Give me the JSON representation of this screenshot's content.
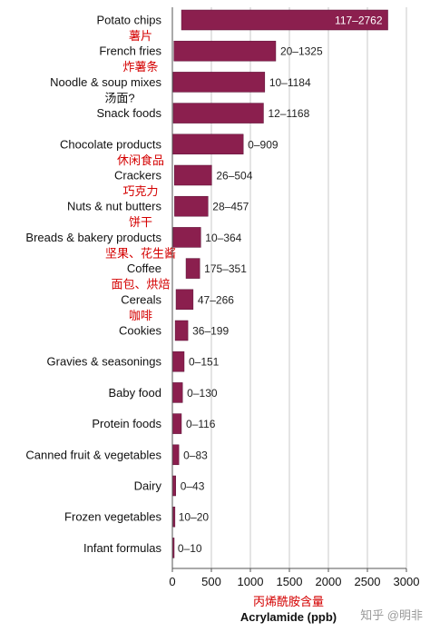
{
  "chart_data": {
    "type": "bar",
    "orientation": "horizontal",
    "categories": [
      "Potato chips",
      "French fries",
      "Noodle & soup mixes",
      "Snack foods",
      "Chocolate products",
      "Crackers",
      "Nuts & nut butters",
      "Breads & bakery products",
      "Coffee",
      "Cereals",
      "Cookies",
      "Gravies & seasonings",
      "Baby food",
      "Protein foods",
      "Canned fruit & vegetables",
      "Dairy",
      "Frozen vegetables",
      "Infant formulas"
    ],
    "series": [
      {
        "ranges": [
          [
            117,
            2762
          ],
          [
            20,
            1325
          ],
          [
            10,
            1184
          ],
          [
            12,
            1168
          ],
          [
            0,
            909
          ],
          [
            26,
            504
          ],
          [
            28,
            457
          ],
          [
            10,
            364
          ],
          [
            175,
            351
          ],
          [
            47,
            266
          ],
          [
            36,
            199
          ],
          [
            0,
            151
          ],
          [
            0,
            130
          ],
          [
            0,
            116
          ],
          [
            0,
            83
          ],
          [
            0,
            43
          ],
          [
            10,
            20
          ],
          [
            0,
            10
          ]
        ],
        "range_labels": [
          "117–2762",
          "20–1325",
          "10–1184",
          "12–1168",
          "0–909",
          "26–504",
          "28–457",
          "10–364",
          "175–351",
          "47–266",
          "36–199",
          "0–151",
          "0–130",
          "0–116",
          "0–83",
          "0–43",
          "10–20",
          "0–10"
        ]
      }
    ],
    "xlabel": "Acrylamide (ppb)",
    "xlabel_cn": "丙烯酰胺含量",
    "xlim": [
      0,
      3000
    ],
    "xticks": [
      0,
      500,
      1000,
      1500,
      2000,
      2500,
      3000
    ],
    "grid": "vertical",
    "annotations_cn": [
      {
        "category": "Potato chips",
        "text": "薯片"
      },
      {
        "category": "French fries",
        "text": "炸薯条"
      },
      {
        "category": "Chocolate products",
        "text": "休闲食品"
      },
      {
        "category": "Crackers",
        "text": "巧克力"
      },
      {
        "category": "Nuts & nut butters",
        "text": "饼干"
      },
      {
        "category": "Breads & bakery products",
        "text": "坚果、花生酱"
      },
      {
        "category": "Coffee",
        "text": "面包、烘焙"
      },
      {
        "category": "Cereals",
        "text": "咖啡"
      }
    ],
    "annotation_note": {
      "category": "Snack foods",
      "text": "汤面?"
    },
    "colors": {
      "bar": "#8b1f4e"
    }
  },
  "watermark": "知乎 @明非"
}
